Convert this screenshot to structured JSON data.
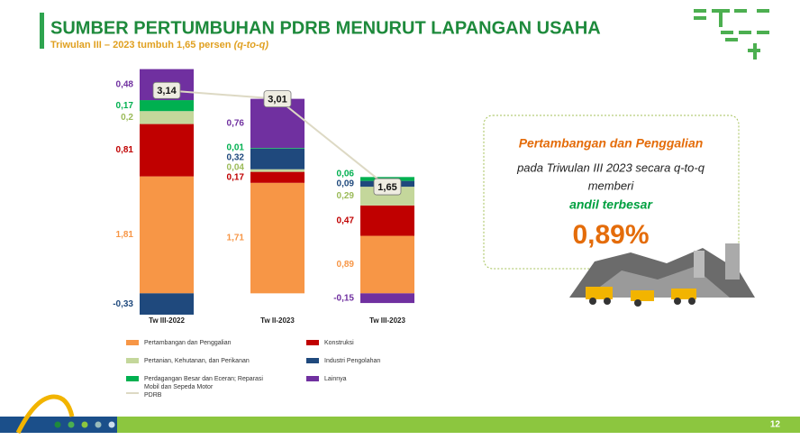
{
  "header": {
    "title": "SUMBER PERTUMBUHAN PDRB MENURUT LAPANGAN USAHA",
    "subtitle": {
      "text": "Triwulan III – 2023 tumbuh 1,65 persen",
      "note": "(q-to-q)"
    }
  },
  "chart_data": {
    "type": "bar",
    "stacked": true,
    "categories": [
      "Tw III-2022",
      "Tw II-2023",
      "Tw III-2023"
    ],
    "ylim": [
      -0.4,
      3.2
    ],
    "series": [
      {
        "name": "Pertambangan dan Penggalian",
        "color": "#f79646",
        "label_color": "#f79646",
        "values": [
          1.81,
          1.71,
          0.89
        ],
        "value_labels": [
          "1,81",
          "1,71",
          "0,89"
        ]
      },
      {
        "name": "Konstruksi",
        "color": "#c00000",
        "label_color": "#c00000",
        "values": [
          0.81,
          0.17,
          0.47
        ],
        "value_labels": [
          "0,81",
          "0,17",
          "0,47"
        ]
      },
      {
        "name": "Pertanian, Kehutanan, dan Perikanan",
        "color": "#c4d79b",
        "label_color": "#9bbb59",
        "values": [
          0.2,
          0.04,
          0.29
        ],
        "value_labels": [
          "0,2",
          "0,04",
          "0,29"
        ]
      },
      {
        "name": "Industri Pengolahan",
        "color": "#1f497d",
        "label_color": "#1f497d",
        "values": [
          -0.33,
          0.32,
          0.09
        ],
        "value_labels": [
          "-0,33",
          "0,32",
          "0,09"
        ]
      },
      {
        "name": "Perdagangan Besar dan Eceran; Reparasi Mobil dan Sepeda Motor",
        "color": "#00b050",
        "label_color": "#00b050",
        "values": [
          0.17,
          0.01,
          0.06
        ],
        "value_labels": [
          "0,17",
          "0,01",
          "0,06"
        ]
      },
      {
        "name": "Lainnya",
        "color": "#7030a0",
        "label_color": "#7030a0",
        "values": [
          0.48,
          0.76,
          -0.15
        ],
        "value_labels": [
          "0,48",
          "0,76",
          "-0,15"
        ]
      }
    ],
    "line": {
      "name": "PDRB",
      "color": "#ddd9c4",
      "values": [
        3.14,
        3.01,
        1.65
      ],
      "value_labels": [
        "3,14",
        "3,01",
        "1,65"
      ]
    }
  },
  "callout": {
    "line1": "Pertambangan dan Penggalian",
    "line2": "pada Triwulan III 2023 secara q-to-q",
    "line3": "memberi",
    "line4": "andil terbesar",
    "value": "0,89%"
  },
  "footer": {
    "page": "12"
  }
}
